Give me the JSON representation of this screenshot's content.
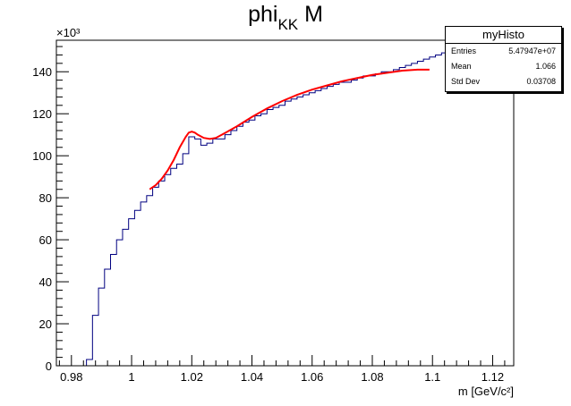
{
  "title": {
    "main": "phi",
    "sub": "KK",
    "suffix": " M"
  },
  "stats": {
    "name": "myHisto",
    "rows": [
      {
        "label": "Entries",
        "value": "5.47947e+07"
      },
      {
        "label": "Mean",
        "value": "1.066"
      },
      {
        "label": "Std Dev",
        "value": "0.03708"
      }
    ]
  },
  "chart_data": {
    "type": "histogram",
    "xlabel": "m [GeV/c²]",
    "ylabel": "",
    "y_multiplier": "×10³",
    "xlim": [
      0.975,
      1.127
    ],
    "ylim": [
      0,
      155
    ],
    "x_ticks": [
      "0.98",
      "1",
      "1.02",
      "1.04",
      "1.06",
      "1.08",
      "1.1",
      "1.12"
    ],
    "y_ticks": [
      "0",
      "20",
      "40",
      "60",
      "80",
      "100",
      "120",
      "140"
    ],
    "histogram": {
      "color": "#000080",
      "bin_edges_start": 0.975,
      "bin_width": 0.002,
      "values": [
        0,
        0,
        0,
        0,
        0,
        3,
        24,
        37,
        46,
        53,
        60,
        65,
        70,
        74,
        78,
        81,
        85,
        88,
        91,
        94,
        96,
        101,
        109,
        108,
        105,
        106,
        108,
        108,
        110,
        112,
        114,
        116,
        117,
        119,
        120,
        122,
        123,
        124,
        126,
        127,
        128,
        129,
        130,
        131,
        132,
        133,
        134,
        135,
        135,
        136,
        137,
        138,
        138,
        139,
        140,
        140,
        141,
        142,
        143,
        144,
        145,
        146,
        147,
        148,
        149,
        150,
        151,
        152,
        153,
        154,
        155,
        155,
        155,
        155,
        155,
        155
      ]
    },
    "fit": {
      "color": "#ff0000",
      "x": [
        1.006,
        1.008,
        1.01,
        1.012,
        1.014,
        1.016,
        1.018,
        1.019,
        1.02,
        1.021,
        1.022,
        1.024,
        1.026,
        1.028,
        1.03,
        1.035,
        1.04,
        1.045,
        1.05,
        1.055,
        1.06,
        1.065,
        1.07,
        1.075,
        1.08,
        1.085,
        1.09,
        1.095,
        1.099
      ],
      "y": [
        84,
        86,
        89,
        93,
        98,
        104,
        109,
        111,
        111.5,
        111,
        110,
        108.5,
        108,
        108.5,
        110,
        114,
        118.5,
        122.5,
        126,
        129,
        131.5,
        133.5,
        135.5,
        137,
        138.5,
        139.5,
        140.5,
        141,
        141
      ]
    }
  }
}
